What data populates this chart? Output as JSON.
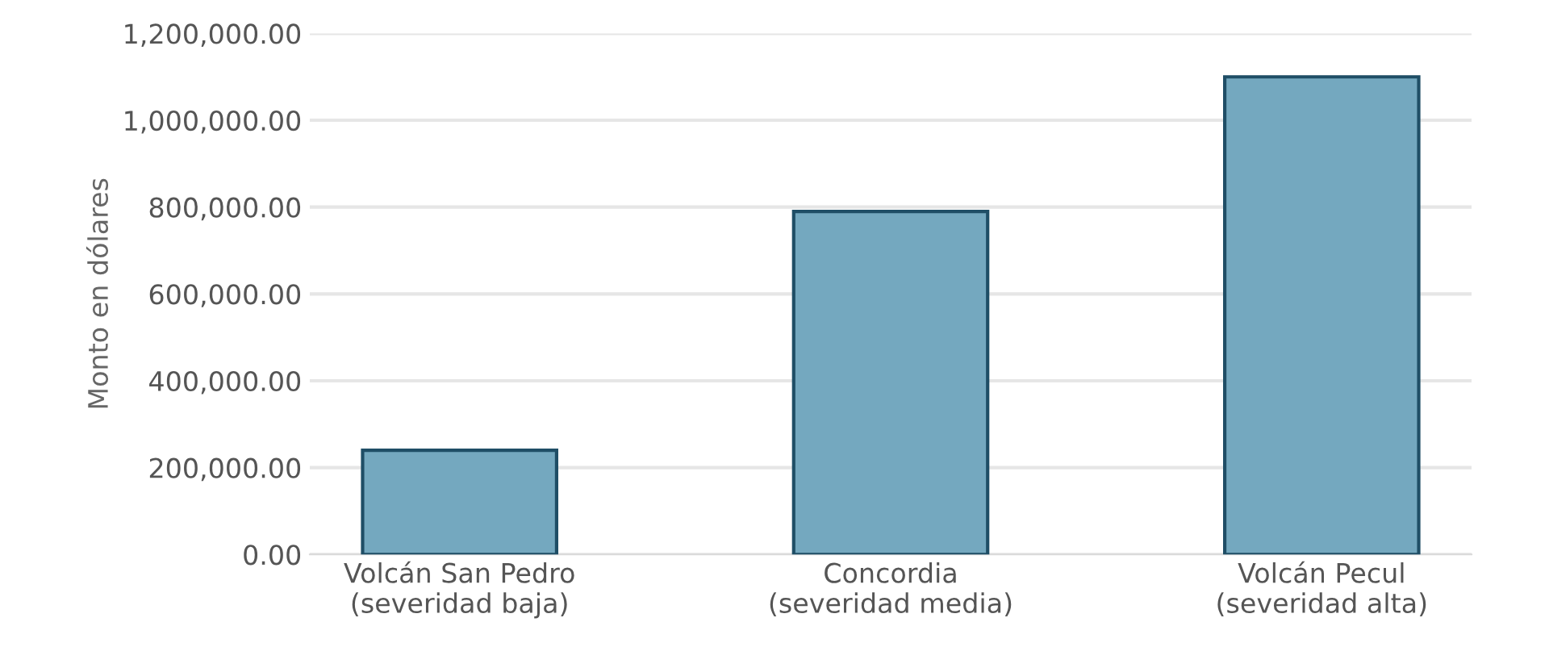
{
  "chart_data": {
    "type": "bar",
    "ylabel": "Monto en dólares",
    "categories": [
      "Volcán San Pedro\n(severidad baja)",
      "Concordia\n(severidad media)",
      "Volcán Pecul\n(severidad alta)"
    ],
    "values": [
      240000,
      790000,
      1100000
    ],
    "color": "#74a8bf",
    "ylim": [
      0,
      1200000
    ],
    "yticks": [
      {
        "value": 0,
        "label": "0.00"
      },
      {
        "value": 200000,
        "label": "200,000.00"
      },
      {
        "value": 400000,
        "label": "400,000.00"
      },
      {
        "value": 600000,
        "label": "600,000.00"
      },
      {
        "value": 800000,
        "label": "800,000.00"
      },
      {
        "value": 1000000,
        "label": "1,000,000.00"
      },
      {
        "value": 1200000,
        "label": "1,200,000.00"
      }
    ],
    "grid": "y"
  }
}
